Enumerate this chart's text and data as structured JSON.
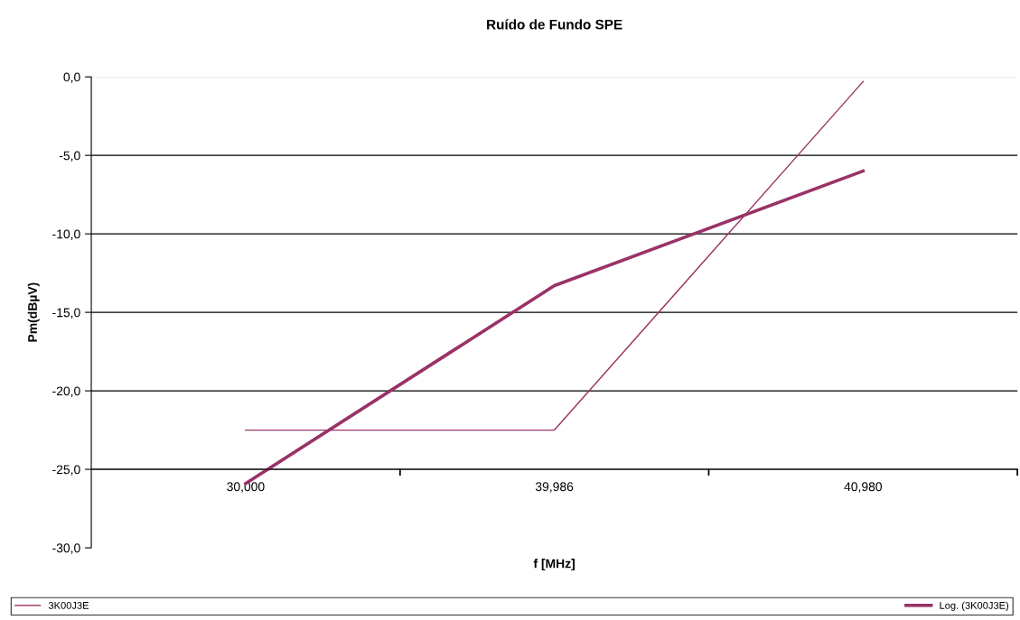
{
  "chart_data": {
    "type": "line",
    "title": "Ruído de Fundo SPE",
    "xlabel": "f [MHz]",
    "ylabel": "Pm(dBµV)",
    "categories": [
      "30,000",
      "39,986",
      "40,980"
    ],
    "series": [
      {
        "name": "3K00J3E",
        "color": "#993366",
        "values": [
          -22.5,
          -22.5,
          -0.3
        ]
      },
      {
        "name": "Log. (3K00J3E)",
        "color": "#993366",
        "values": [
          -25.9,
          -13.3,
          -6.0
        ]
      }
    ],
    "ylim": [
      -30,
      0
    ],
    "yticks": [
      {
        "value": -30,
        "label": "-30,0"
      },
      {
        "value": -25,
        "label": "-25,0"
      },
      {
        "value": -20,
        "label": "-20,0"
      },
      {
        "value": -15,
        "label": "-15,0"
      },
      {
        "value": -10,
        "label": "-10,0"
      },
      {
        "value": -5,
        "label": "-5,0"
      },
      {
        "value": 0,
        "label": "0,0"
      }
    ],
    "grid": "y",
    "legend": "bottom",
    "marker": "none",
    "line_style": "solid"
  }
}
